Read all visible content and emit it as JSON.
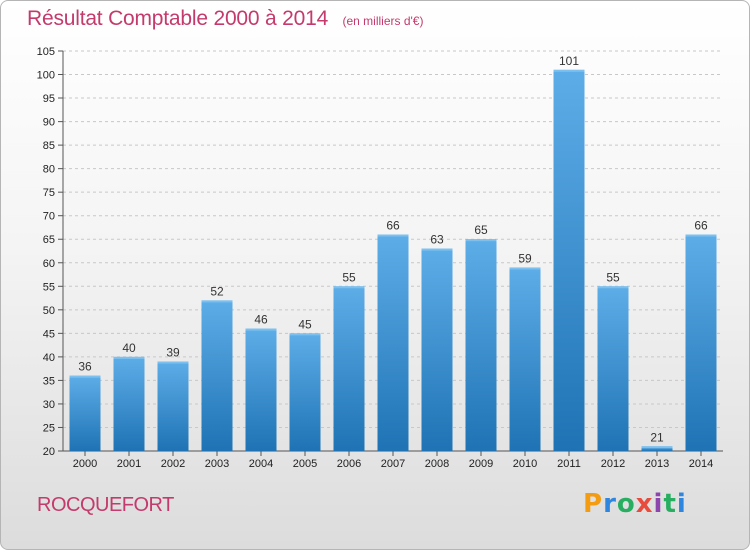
{
  "header": {
    "title": "Résultat Comptable 2000 à 2014",
    "unit": "(en milliers d'€)"
  },
  "footer": {
    "commune": "ROCQUEFORT",
    "logo": "Proxiti"
  },
  "colors": {
    "accent": "#c43a6c",
    "bar_top": "#5dade8",
    "bar_bottom": "#1f73b4",
    "grid": "#c8c8c8"
  },
  "chart_data": {
    "type": "bar",
    "title": "Résultat Comptable 2000 à 2014",
    "subtitle": "(en milliers d'€)",
    "xlabel": "",
    "ylabel": "",
    "categories": [
      "2000",
      "2001",
      "2002",
      "2003",
      "2004",
      "2005",
      "2006",
      "2007",
      "2008",
      "2009",
      "2010",
      "2011",
      "2012",
      "2013",
      "2014"
    ],
    "values": [
      36,
      40,
      39,
      52,
      46,
      45,
      55,
      66,
      63,
      65,
      59,
      101,
      55,
      21,
      66
    ],
    "ylim": [
      20,
      105
    ],
    "yticks": [
      20,
      25,
      30,
      35,
      40,
      45,
      50,
      55,
      60,
      65,
      70,
      75,
      80,
      85,
      90,
      95,
      100,
      105
    ],
    "grid": "horizontal dashed",
    "legend": "none"
  }
}
